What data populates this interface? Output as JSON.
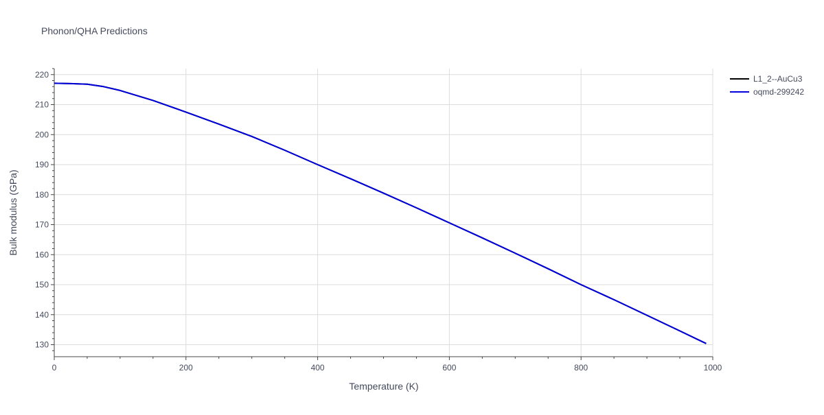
{
  "chart_data": {
    "type": "line",
    "title": "Phonon/QHA Predictions",
    "xlabel": "Temperature (K)",
    "ylabel": "Bulk modulus (GPa)",
    "xlim": [
      0,
      1000
    ],
    "ylim": [
      126,
      222
    ],
    "x_ticks": [
      0,
      200,
      400,
      600,
      800,
      1000
    ],
    "y_ticks": [
      130,
      140,
      150,
      160,
      170,
      180,
      190,
      200,
      210,
      220
    ],
    "grid": true,
    "legend_position": "top-right",
    "series": [
      {
        "name": "L1_2--AuCu3",
        "color": "#000000",
        "x": [
          0,
          25,
          50,
          75,
          100,
          150,
          200,
          250,
          300,
          350,
          400,
          450,
          500,
          550,
          600,
          650,
          700,
          750,
          800,
          850,
          900,
          950,
          990
        ],
        "y": [
          217.1,
          217.0,
          216.8,
          216.0,
          214.7,
          211.4,
          207.5,
          203.5,
          199.4,
          194.8,
          190.0,
          185.3,
          180.5,
          175.6,
          170.6,
          165.6,
          160.5,
          155.3,
          150.0,
          145.0,
          139.8,
          134.6,
          130.4
        ]
      },
      {
        "name": "oqmd-299242",
        "color": "#0000dd",
        "x": [
          0,
          25,
          50,
          75,
          100,
          150,
          200,
          250,
          300,
          350,
          400,
          450,
          500,
          550,
          600,
          650,
          700,
          750,
          800,
          850,
          900,
          950,
          990
        ],
        "y": [
          217.1,
          217.0,
          216.8,
          216.0,
          214.7,
          211.4,
          207.5,
          203.5,
          199.4,
          194.8,
          190.0,
          185.3,
          180.5,
          175.6,
          170.6,
          165.6,
          160.5,
          155.3,
          150.0,
          145.0,
          139.8,
          134.6,
          130.4
        ]
      }
    ]
  }
}
